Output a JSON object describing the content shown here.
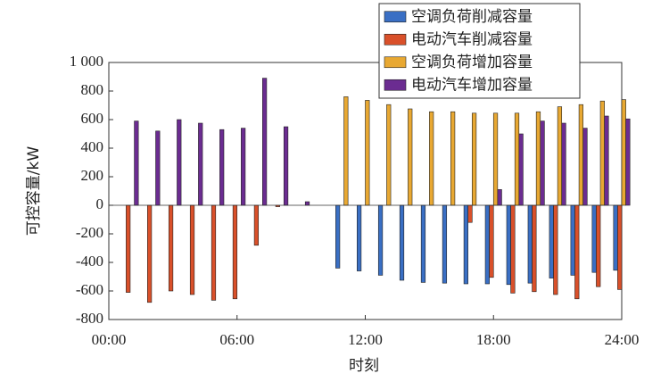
{
  "chart_data": {
    "type": "bar",
    "x": [
      1,
      2,
      3,
      4,
      5,
      6,
      7,
      8,
      9,
      10,
      11,
      12,
      13,
      14,
      15,
      16,
      17,
      18,
      19,
      20,
      21,
      22,
      23,
      24
    ],
    "xlim": [
      0,
      24
    ],
    "xticks": [
      {
        "value": 0,
        "label": "00:00"
      },
      {
        "value": 6,
        "label": "06:00"
      },
      {
        "value": 12,
        "label": "12:00"
      },
      {
        "value": 18,
        "label": "18:00"
      },
      {
        "value": 24,
        "label": "24:00"
      }
    ],
    "ylim": [
      -800,
      1000
    ],
    "yticks": [
      -800,
      -600,
      -400,
      -200,
      0,
      200,
      400,
      600,
      800,
      {
        "value": 1000,
        "label": "1 000"
      }
    ],
    "xlabel": "时刻",
    "ylabel": "可控容量/kW",
    "legend": "top-right",
    "series": [
      {
        "name": "空调负荷削减容量",
        "color": "#3a6fc4",
        "values": [
          0,
          0,
          0,
          0,
          0,
          0,
          0,
          0,
          0,
          0,
          -440,
          -460,
          -490,
          -525,
          -540,
          -545,
          -550,
          -550,
          -555,
          -545,
          -510,
          -490,
          -470,
          -455
        ]
      },
      {
        "name": "电动汽车削减容量",
        "color": "#d9502a",
        "values": [
          -610,
          -680,
          -600,
          -625,
          -665,
          -655,
          -280,
          -10,
          0,
          0,
          0,
          0,
          0,
          0,
          0,
          0,
          -120,
          -505,
          -615,
          -605,
          -625,
          -655,
          -570,
          -590
        ]
      },
      {
        "name": "空调负荷增加容量",
        "color": "#e8a832",
        "values": [
          0,
          0,
          0,
          0,
          0,
          0,
          0,
          0,
          0,
          0,
          760,
          735,
          705,
          675,
          655,
          655,
          645,
          645,
          645,
          655,
          690,
          705,
          730,
          740
        ]
      },
      {
        "name": "电动汽车增加容量",
        "color": "#6b2c91",
        "values": [
          590,
          520,
          600,
          575,
          530,
          540,
          890,
          550,
          25,
          0,
          0,
          0,
          0,
          0,
          0,
          0,
          0,
          110,
          500,
          590,
          575,
          540,
          625,
          605
        ]
      }
    ]
  }
}
